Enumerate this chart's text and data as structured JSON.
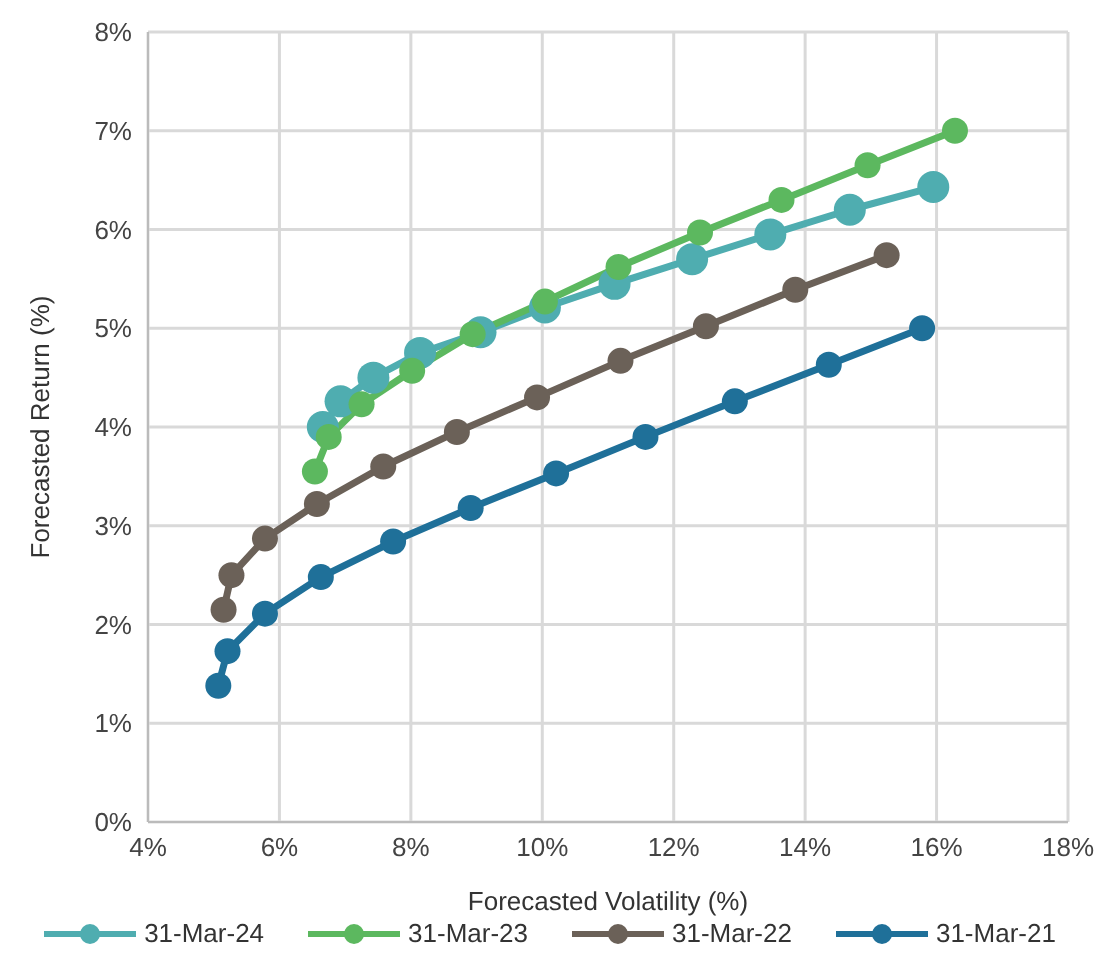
{
  "chart_data": {
    "type": "line",
    "xlabel": "Forecasted Volatility (%)",
    "ylabel": "Forecasted Return (%)",
    "xlim": [
      4,
      18
    ],
    "xticks": [
      {
        "value": 4,
        "label": "4%"
      },
      {
        "value": 6,
        "label": "6%"
      },
      {
        "value": 8,
        "label": "8%"
      },
      {
        "value": 10,
        "label": "10%"
      },
      {
        "value": 12,
        "label": "12%"
      },
      {
        "value": 14,
        "label": "14%"
      },
      {
        "value": 16,
        "label": "16%"
      },
      {
        "value": 18,
        "label": "18%"
      }
    ],
    "ylim": [
      0,
      8
    ],
    "yticks": [
      {
        "value": 0,
        "label": "0%"
      },
      {
        "value": 1,
        "label": "1%"
      },
      {
        "value": 2,
        "label": "2%"
      },
      {
        "value": 3,
        "label": "3%"
      },
      {
        "value": 4,
        "label": "4%"
      },
      {
        "value": 5,
        "label": "5%"
      },
      {
        "value": 6,
        "label": "6%"
      },
      {
        "value": 7,
        "label": "7%"
      },
      {
        "value": 8,
        "label": "8%"
      }
    ],
    "grid": true,
    "legend": "bottom",
    "marker": "circle",
    "line_style": "solid",
    "series": [
      {
        "name": "31-Mar-24",
        "color": "#4fadb0",
        "x": [
          6.66,
          6.93,
          7.43,
          8.14,
          9.06,
          10.04,
          11.1,
          12.28,
          13.47,
          14.68,
          15.95
        ],
        "values": [
          4.0,
          4.26,
          4.5,
          4.75,
          4.96,
          5.21,
          5.45,
          5.7,
          5.95,
          6.2,
          6.43
        ]
      },
      {
        "name": "31-Mar-23",
        "color": "#5cb85f",
        "x": [
          6.54,
          6.75,
          7.25,
          8.02,
          8.94,
          10.04,
          11.16,
          12.4,
          13.64,
          14.95,
          16.28
        ],
        "values": [
          3.55,
          3.9,
          4.23,
          4.57,
          4.94,
          5.27,
          5.62,
          5.97,
          6.3,
          6.65,
          7.0
        ]
      },
      {
        "name": "31-Mar-22",
        "color": "#6b6158",
        "x": [
          5.15,
          5.27,
          5.78,
          6.57,
          7.58,
          8.7,
          9.92,
          11.19,
          12.49,
          13.85,
          15.24
        ],
        "values": [
          2.15,
          2.5,
          2.87,
          3.22,
          3.6,
          3.95,
          4.3,
          4.67,
          5.02,
          5.39,
          5.74
        ]
      },
      {
        "name": "31-Mar-21",
        "color": "#1f7099",
        "x": [
          5.07,
          5.21,
          5.78,
          6.63,
          7.73,
          8.91,
          10.21,
          11.57,
          12.93,
          14.36,
          15.78
        ],
        "values": [
          1.38,
          1.73,
          2.11,
          2.48,
          2.84,
          3.18,
          3.53,
          3.9,
          4.26,
          4.63,
          5.0
        ]
      }
    ]
  }
}
